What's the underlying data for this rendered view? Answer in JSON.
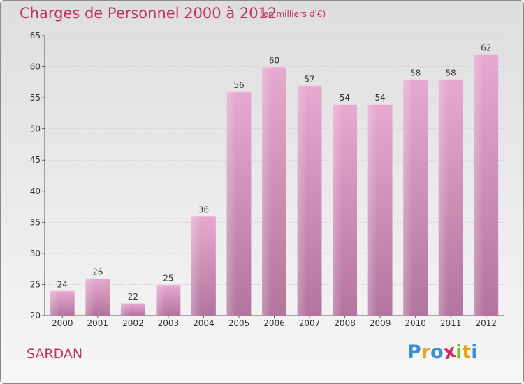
{
  "header": {
    "title": "Charges de Personnel 2000 à 2012",
    "subtitle": "(en milliers d'€)"
  },
  "footer": {
    "town": "SARDAN",
    "logo_text": "Proxiti",
    "logo_colors": [
      "#3a8fd6",
      "#f39c12",
      "#3a8fd6",
      "#d6285f",
      "#7cbf2b",
      "#f39c12",
      "#3a8fd6"
    ]
  },
  "colors": {
    "accent": "#c0315e",
    "bar_top": "#e6a9cf",
    "bar_bottom": "#b3759d"
  },
  "chart_data": {
    "type": "bar",
    "title": "Charges de Personnel 2000 à 2012",
    "subtitle": "(en milliers d'€)",
    "categories": [
      "2000",
      "2001",
      "2002",
      "2003",
      "2004",
      "2005",
      "2006",
      "2007",
      "2008",
      "2009",
      "2010",
      "2011",
      "2012"
    ],
    "values": [
      24,
      26,
      22,
      25,
      36,
      56,
      60,
      57,
      54,
      54,
      58,
      58,
      62
    ],
    "ylim": [
      20,
      65
    ],
    "yticks": [
      20,
      25,
      30,
      35,
      40,
      45,
      50,
      55,
      60,
      65
    ],
    "grid": true,
    "data_labels": true
  }
}
